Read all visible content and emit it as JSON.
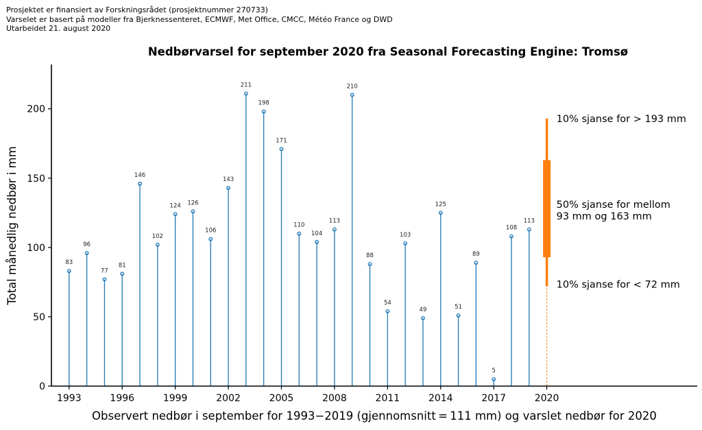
{
  "credits": [
    "Prosjektet er finansiert av Forskningsrådet (prosjektnummer 270733)",
    "Varselet er basert på modeller fra Bjerknessenteret, ECMWF, Met Office, CMCC, Météo France og DWD",
    "Utarbeidet 21. august 2020"
  ],
  "colors": {
    "observed": "#1f77b4",
    "forecast": "#ff7f0e",
    "axis": "#000000"
  },
  "chart_data": {
    "type": "stem",
    "title": "Nedbørvarsel for september 2020 fra Seasonal Forecasting Engine: Tromsø",
    "xlabel": "Observert nedbør i september for 1993−2019 (gjennomsnitt = 111 mm) og varslet nedbør for 2020",
    "ylabel": "Total månedlig nedbør i mm",
    "xlim": [
      1992,
      2028.5
    ],
    "ylim": [
      0,
      232
    ],
    "grid": false,
    "xticks": [
      1993,
      1996,
      1999,
      2002,
      2005,
      2008,
      2011,
      2014,
      2017,
      2020
    ],
    "yticks": [
      0,
      50,
      100,
      150,
      200
    ],
    "observed": {
      "name": "Observert nedbør",
      "x": [
        1993,
        1994,
        1995,
        1996,
        1997,
        1998,
        1999,
        2000,
        2001,
        2002,
        2003,
        2004,
        2005,
        2006,
        2007,
        2008,
        2009,
        2010,
        2011,
        2012,
        2013,
        2014,
        2015,
        2016,
        2017,
        2018,
        2019
      ],
      "values": [
        83,
        96,
        77,
        81,
        146,
        102,
        124,
        126,
        106,
        143,
        211,
        198,
        171,
        110,
        104,
        113,
        210,
        88,
        54,
        103,
        49,
        125,
        51,
        89,
        5,
        108,
        113
      ]
    },
    "forecast": {
      "year": 2020,
      "p10": 72,
      "p25": 93,
      "p75": 163,
      "p90": 193,
      "annotations": {
        "upper": "10% sjanse for > 193 mm",
        "middle_line1": "50% sjanse for mellom",
        "middle_line2": "93 mm og 163 mm",
        "lower": "10% sjanse for < 72 mm"
      }
    }
  }
}
